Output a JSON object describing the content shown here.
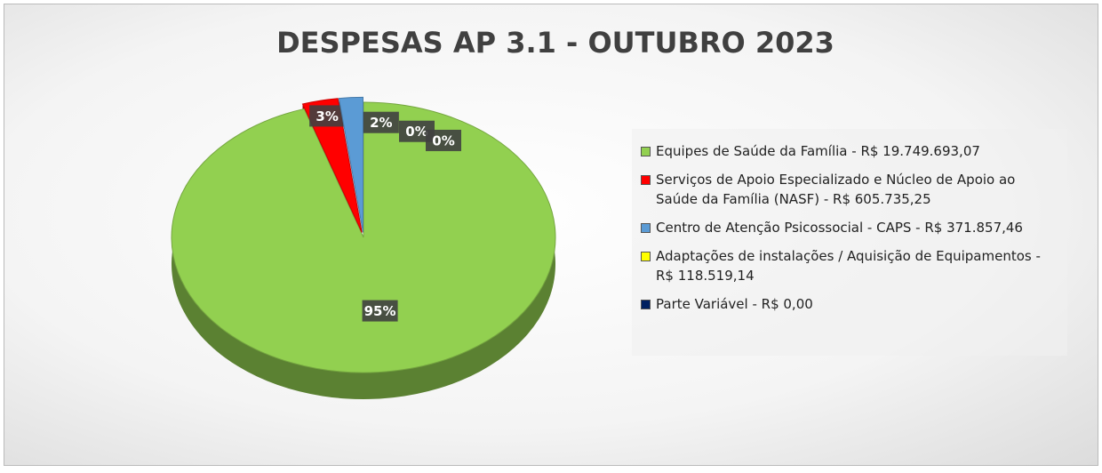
{
  "chart_data": {
    "type": "pie",
    "title": "DESPESAS AP 3.1 - OUTUBRO 2023",
    "categories": [
      "Equipes de Saúde da Família - R$ 19.749.693,07",
      "Serviços de Apoio Especializado e Núcleo de Apoio ao Saúde da Família (NASF) - R$ 605.735,25",
      "Centro de Atenção Psicossocial - CAPS - R$ 371.857,46",
      "Adaptações de instalações / Aquisição de Equipamentos - R$ 118.519,14",
      "Parte Variável - R$ 0,00"
    ],
    "values": [
      95,
      3,
      2,
      0,
      0
    ],
    "value_labels": [
      "95%",
      "3%",
      "2%",
      "0%",
      "0%"
    ],
    "colors": [
      "#92d050",
      "#ff0000",
      "#5b9bd5",
      "#ffff00",
      "#002060"
    ],
    "legend": "right"
  }
}
